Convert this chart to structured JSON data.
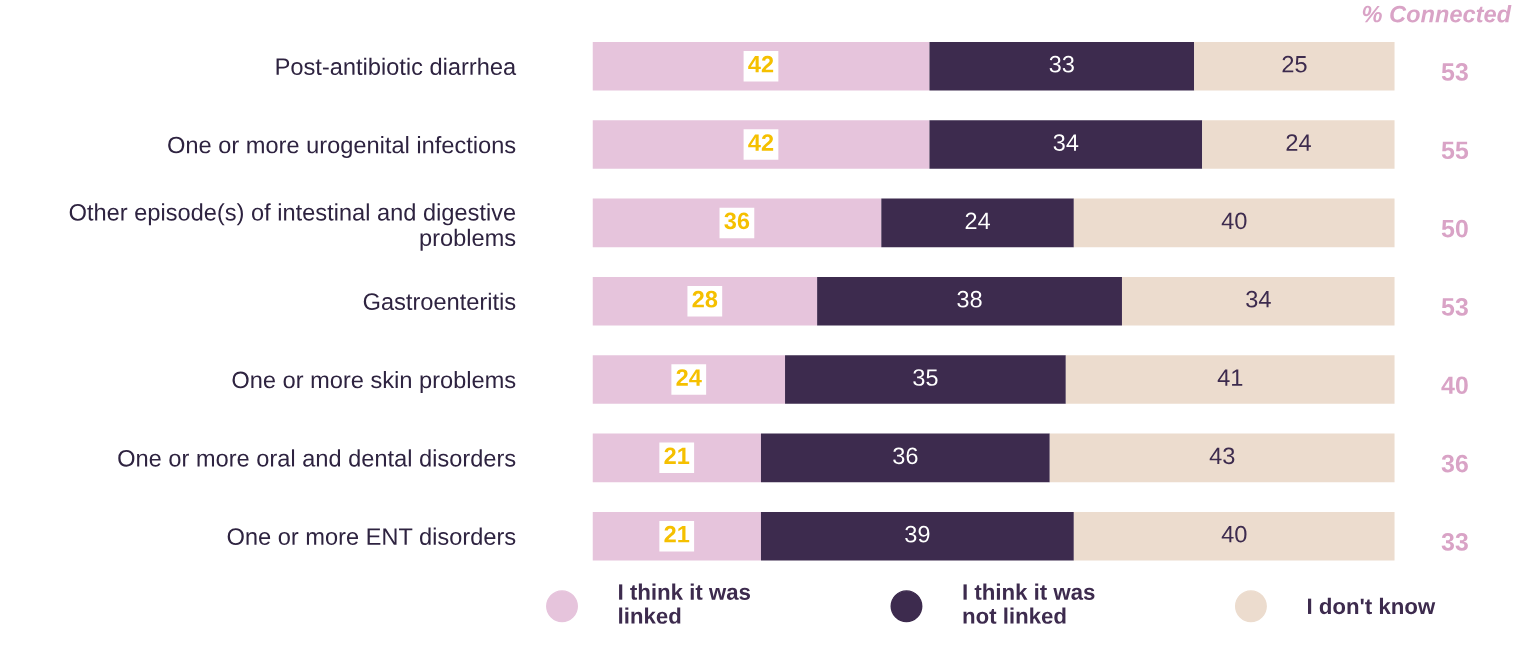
{
  "chart_data": {
    "type": "bar",
    "orientation": "horizontal",
    "stacked": true,
    "data_labels": true,
    "tick_labels": "y",
    "legend": "bottom",
    "grid": false,
    "xlim": [
      0,
      100
    ],
    "categories": [
      "Post-antibiotic diarrhea",
      "One or more urogenital infections",
      "Other episode(s) of intestinal and digestive problems",
      "Gastroenteritis",
      "One or more skin problems",
      "One or more oral and dental disorders",
      "One or more ENT disorders"
    ],
    "series": [
      {
        "name": "I think it was\nlinked",
        "color": "#e6c4dc",
        "values": [
          42,
          42,
          36,
          28,
          24,
          21,
          21
        ]
      },
      {
        "name": "I think it was\nnot linked",
        "color": "#3d2b4e",
        "values": [
          33,
          34,
          24,
          38,
          35,
          36,
          39
        ]
      },
      {
        "name": "I don't know",
        "color": "#ecdcce",
        "values": [
          25,
          24,
          40,
          34,
          41,
          43,
          40
        ]
      }
    ],
    "annotations": [
      "% Connected",
      "53",
      "55",
      "50",
      "53",
      "40",
      "36",
      "33"
    ]
  }
}
